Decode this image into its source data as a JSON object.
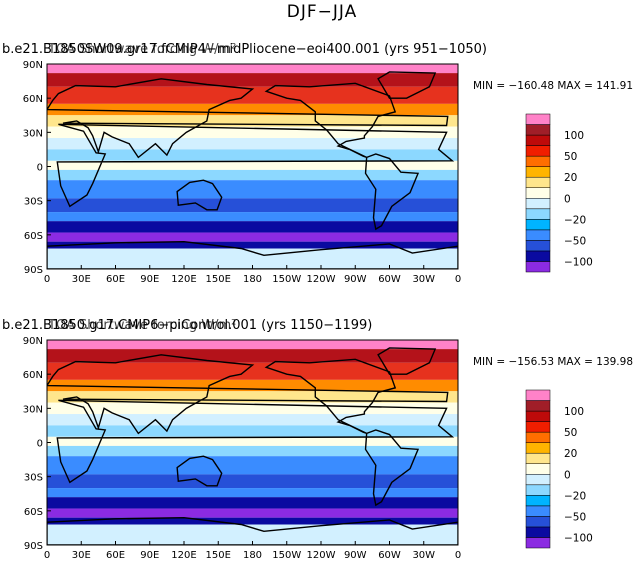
{
  "title": "DJF−JJA",
  "colorbar": {
    "colors": [
      "#8b2be2",
      "#0a0aa0",
      "#2650d8",
      "#3a8cff",
      "#00b4ff",
      "#8cd8ff",
      "#d2f0ff",
      "#ffffe8",
      "#ffe68c",
      "#ffb400",
      "#ff6e00",
      "#f01e00",
      "#be0a0a",
      "#a01e28",
      "#ff82c8"
    ],
    "tick_labels": [
      "100",
      "50",
      "20",
      "0",
      "−20",
      "−50",
      "−100"
    ]
  },
  "colors": {
    "warm_strong": "#b4121a",
    "warm": "#e6321e",
    "neutral": "#ffffe8",
    "cool": "#3a8cff",
    "cool_strong": "#0a0aa0",
    "extreme_low": "#8b2be2",
    "extreme_high": "#ff82c8",
    "ocean_mid": "#d2f0ff"
  },
  "x_ticks": [
    "0",
    "30E",
    "60E",
    "90E",
    "120E",
    "150E",
    "180",
    "150W",
    "120W",
    "90W",
    "60W",
    "30W",
    "0"
  ],
  "y_ticks": [
    "90N",
    "60N",
    "30N",
    "0",
    "30S",
    "60S",
    "90S"
  ],
  "panels": [
    {
      "title_a": "b.e21.B1850SW09.gr17.fCMIP4−midPliocene−eoi400.001 (yrs 951−1050)",
      "title_b": "TOA Shortwave forcing W/m²",
      "min_max": "MIN = −160.48  MAX = 141.91"
    },
    {
      "title_a": "b.e21.B1850.g17.CMIP6−piControl.001 (yrs 1150−1199)",
      "title_b": "TOA Shortwave forcing W/m²",
      "min_max": "MIN = −156.53  MAX = 139.98"
    }
  ]
}
